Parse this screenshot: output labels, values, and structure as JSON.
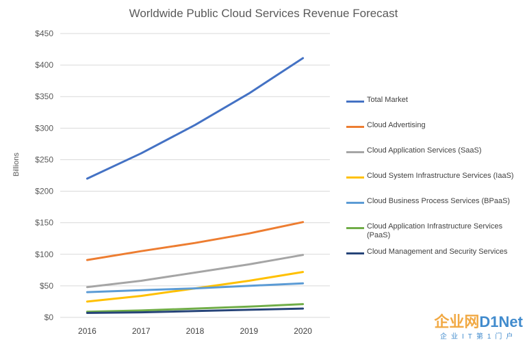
{
  "chart_data": {
    "type": "line",
    "title": "Worldwide Public Cloud Services Revenue Forecast",
    "ylabel": "Billions",
    "xlabel": "",
    "x": [
      "2016",
      "2017",
      "2018",
      "2019",
      "2020"
    ],
    "ylim": [
      0,
      450
    ],
    "yticks": [
      0,
      50,
      100,
      150,
      200,
      250,
      300,
      350,
      400,
      450
    ],
    "ytick_labels": [
      "$0",
      "$50",
      "$100",
      "$150",
      "$200",
      "$250",
      "$300",
      "$350",
      "$400",
      "$450"
    ],
    "grid": "horizontal",
    "legend_position": "right",
    "series": [
      {
        "name": "Total Market",
        "color": "#4472c4",
        "values": [
          220,
          260,
          305,
          355,
          411
        ]
      },
      {
        "name": "Cloud Advertising",
        "color": "#ed7d31",
        "values": [
          91,
          105,
          118,
          133,
          151
        ]
      },
      {
        "name": "Cloud Application Services (SaaS)",
        "color": "#a5a5a5",
        "values": [
          48,
          58,
          71,
          84,
          99
        ]
      },
      {
        "name": "Cloud System Infrastructure Services (IaaS)",
        "color": "#ffc000",
        "values": [
          25,
          34,
          46,
          58,
          72
        ]
      },
      {
        "name": "Cloud Business Process Services (BPaaS)",
        "color": "#5b9bd5",
        "values": [
          40,
          43,
          46,
          50,
          54
        ]
      },
      {
        "name": "Cloud Application Infrastructure Services (PaaS)",
        "color": "#70ad47",
        "values": [
          9,
          11,
          14,
          17,
          21
        ]
      },
      {
        "name": "Cloud Management and Security Services",
        "color": "#264478",
        "values": [
          7,
          8,
          10,
          12,
          14
        ]
      }
    ]
  },
  "watermark": {
    "main_cn": "企业网",
    "main_en": "D1Net",
    "sub": "企业IT第1门户"
  }
}
